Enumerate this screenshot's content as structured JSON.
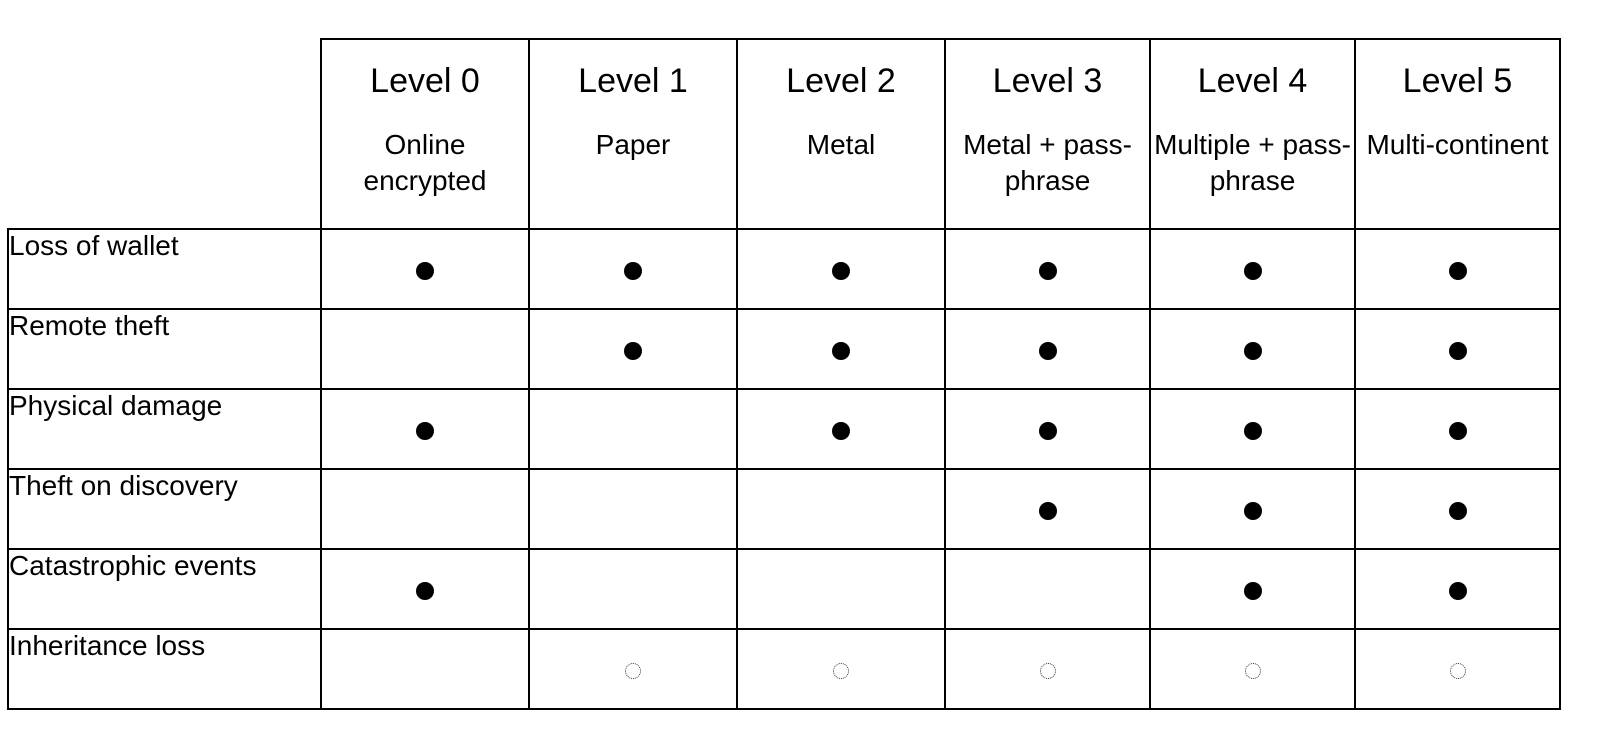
{
  "columns": [
    {
      "level": "Level 0",
      "desc": "Online encrypted"
    },
    {
      "level": "Level 1",
      "desc": "Paper"
    },
    {
      "level": "Level 2",
      "desc": "Metal"
    },
    {
      "level": "Level 3",
      "desc": "Metal + pass-phrase"
    },
    {
      "level": "Level 4",
      "desc": "Multiple + pass-phrase"
    },
    {
      "level": "Level 5",
      "desc": "Multi-continent"
    }
  ],
  "rows": [
    {
      "label": "Loss of wallet",
      "cells": [
        "filled",
        "filled",
        "filled",
        "filled",
        "filled",
        "filled"
      ]
    },
    {
      "label": "Remote theft",
      "cells": [
        "none",
        "filled",
        "filled",
        "filled",
        "filled",
        "filled"
      ]
    },
    {
      "label": "Physical damage",
      "cells": [
        "filled",
        "none",
        "filled",
        "filled",
        "filled",
        "filled"
      ]
    },
    {
      "label": "Theft on discovery",
      "cells": [
        "none",
        "none",
        "none",
        "filled",
        "filled",
        "filled"
      ]
    },
    {
      "label": "Catastrophic events",
      "cells": [
        "filled",
        "none",
        "none",
        "none",
        "filled",
        "filled"
      ]
    },
    {
      "label": "Inheritance loss",
      "cells": [
        "none",
        "hollow",
        "hollow",
        "hollow",
        "hollow",
        "hollow"
      ]
    }
  ]
}
